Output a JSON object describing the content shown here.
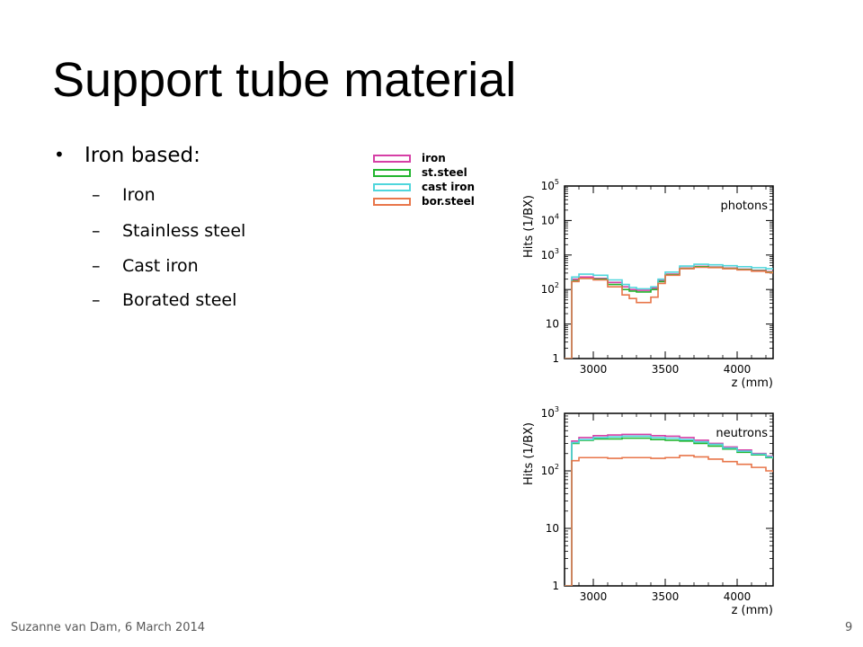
{
  "slide": {
    "title": "Support tube material",
    "bullet": "Iron based:",
    "sub_bullets": [
      "Iron",
      "Stainless steel",
      "Cast iron",
      "Borated steel"
    ],
    "footer": "Suzanne van Dam, 6 March 2014",
    "page_number": "9"
  },
  "legend": [
    {
      "label": "iron",
      "color": "#d63fa6"
    },
    {
      "label": "st.steel",
      "color": "#22b52f"
    },
    {
      "label": "cast iron",
      "color": "#4fd6dc"
    },
    {
      "label": "bor.steel",
      "color": "#e8764a"
    }
  ],
  "chart_data": [
    {
      "type": "line",
      "annotation": "photons",
      "xlabel": "z (mm)",
      "ylabel": "Hits (1/BX)",
      "y_scale": "log",
      "xlim": [
        2800,
        4250
      ],
      "ylim": [
        1,
        100000
      ],
      "x_ticks": [
        "3000",
        "3500",
        "4000"
      ],
      "y_ticks": [
        "1",
        "10",
        "10^2",
        "10^3",
        "10^4",
        "10^5"
      ],
      "x": [
        2800,
        2850,
        2900,
        3000,
        3100,
        3200,
        3250,
        3300,
        3350,
        3400,
        3450,
        3500,
        3600,
        3700,
        3800,
        3900,
        4000,
        4100,
        4200,
        4250
      ],
      "series": [
        {
          "name": "iron",
          "values": [
            1,
            200,
            230,
            210,
            160,
            120,
            100,
            95,
            95,
            110,
            180,
            280,
            420,
            470,
            450,
            420,
            390,
            360,
            330,
            310
          ]
        },
        {
          "name": "st.steel",
          "values": [
            1,
            180,
            210,
            200,
            140,
            100,
            90,
            85,
            85,
            100,
            170,
            270,
            410,
            460,
            440,
            410,
            380,
            350,
            320,
            300
          ]
        },
        {
          "name": "cast iron",
          "values": [
            1,
            230,
            280,
            260,
            190,
            140,
            115,
            105,
            105,
            120,
            200,
            320,
            480,
            540,
            520,
            490,
            460,
            430,
            400,
            380
          ]
        },
        {
          "name": "bor.steel",
          "values": [
            1,
            170,
            210,
            190,
            120,
            70,
            55,
            42,
            42,
            60,
            150,
            260,
            400,
            440,
            430,
            400,
            370,
            340,
            310,
            290
          ]
        }
      ]
    },
    {
      "type": "line",
      "annotation": "neutrons",
      "xlabel": "z (mm)",
      "ylabel": "Hits (1/BX)",
      "y_scale": "log",
      "xlim": [
        2800,
        4250
      ],
      "ylim": [
        1,
        1000
      ],
      "x_ticks": [
        "3000",
        "3500",
        "4000"
      ],
      "y_ticks": [
        "1",
        "10",
        "10^2",
        "10^3"
      ],
      "x": [
        2800,
        2850,
        2900,
        3000,
        3100,
        3200,
        3300,
        3400,
        3500,
        3600,
        3700,
        3800,
        3900,
        4000,
        4100,
        4200,
        4250
      ],
      "series": [
        {
          "name": "iron",
          "values": [
            1,
            330,
            380,
            410,
            420,
            430,
            430,
            410,
            400,
            380,
            340,
            300,
            260,
            230,
            200,
            180,
            170
          ]
        },
        {
          "name": "st.steel",
          "values": [
            1,
            300,
            340,
            360,
            360,
            370,
            370,
            350,
            340,
            330,
            300,
            270,
            240,
            210,
            190,
            170,
            160
          ]
        },
        {
          "name": "cast iron",
          "values": [
            1,
            310,
            350,
            380,
            390,
            400,
            400,
            380,
            370,
            350,
            320,
            290,
            250,
            220,
            195,
            175,
            165
          ]
        },
        {
          "name": "bor.steel",
          "values": [
            1,
            150,
            170,
            170,
            165,
            170,
            170,
            165,
            170,
            185,
            175,
            160,
            145,
            130,
            115,
            100,
            95
          ]
        }
      ]
    }
  ]
}
